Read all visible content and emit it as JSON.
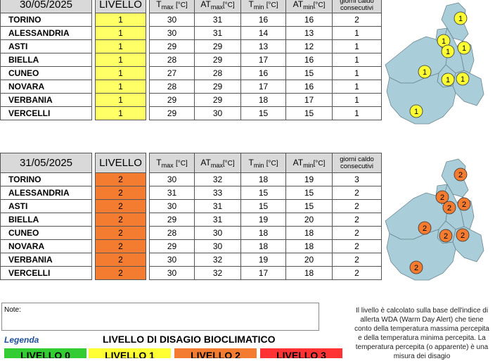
{
  "headers": {
    "livello": "LIVELLO",
    "tmax_main": "T",
    "tmax_sub": "max",
    "tmax_unit": "[°C]",
    "atmax_main": "AT",
    "atmax_sub": "max",
    "atmax_unit": "[°C]",
    "tmin_main": "T",
    "tmin_sub": "min",
    "tmin_unit": "[°C]",
    "atmin_main": "AT",
    "atmin_sub": "min",
    "atmin_unit": "[°C]",
    "giorni": "giorni caldo consecutivi"
  },
  "level_colors": {
    "1": "#ffff66",
    "2": "#f47c30"
  },
  "tables": [
    {
      "date": "30/05/2025",
      "rows": [
        {
          "city": "TORINO",
          "level": "1",
          "tmax": "30",
          "atmax": "31",
          "tmin": "16",
          "atmin": "16",
          "giorni": "2"
        },
        {
          "city": "ALESSANDRIA",
          "level": "1",
          "tmax": "30",
          "atmax": "31",
          "tmin": "14",
          "atmin": "13",
          "giorni": "1"
        },
        {
          "city": "ASTI",
          "level": "1",
          "tmax": "29",
          "atmax": "29",
          "tmin": "13",
          "atmin": "12",
          "giorni": "1"
        },
        {
          "city": "BIELLA",
          "level": "1",
          "tmax": "28",
          "atmax": "29",
          "tmin": "17",
          "atmin": "16",
          "giorni": "1"
        },
        {
          "city": "CUNEO",
          "level": "1",
          "tmax": "27",
          "atmax": "28",
          "tmin": "16",
          "atmin": "15",
          "giorni": "1"
        },
        {
          "city": "NOVARA",
          "level": "1",
          "tmax": "28",
          "atmax": "29",
          "tmin": "17",
          "atmin": "16",
          "giorni": "1"
        },
        {
          "city": "VERBANIA",
          "level": "1",
          "tmax": "29",
          "atmax": "29",
          "tmin": "18",
          "atmin": "17",
          "giorni": "1"
        },
        {
          "city": "VERCELLI",
          "level": "1",
          "tmax": "29",
          "atmax": "30",
          "tmin": "15",
          "atmin": "15",
          "giorni": "1"
        }
      ],
      "map_color": "#ffff33",
      "map_level": "1"
    },
    {
      "date": "31/05/2025",
      "rows": [
        {
          "city": "TORINO",
          "level": "2",
          "tmax": "30",
          "atmax": "32",
          "tmin": "18",
          "atmin": "19",
          "giorni": "3"
        },
        {
          "city": "ALESSANDRIA",
          "level": "2",
          "tmax": "31",
          "atmax": "33",
          "tmin": "15",
          "atmin": "15",
          "giorni": "2"
        },
        {
          "city": "ASTI",
          "level": "2",
          "tmax": "30",
          "atmax": "31",
          "tmin": "15",
          "atmin": "15",
          "giorni": "2"
        },
        {
          "city": "BIELLA",
          "level": "2",
          "tmax": "29",
          "atmax": "31",
          "tmin": "19",
          "atmin": "20",
          "giorni": "2"
        },
        {
          "city": "CUNEO",
          "level": "2",
          "tmax": "28",
          "atmax": "30",
          "tmin": "18",
          "atmin": "18",
          "giorni": "2"
        },
        {
          "city": "NOVARA",
          "level": "2",
          "tmax": "29",
          "atmax": "30",
          "tmin": "18",
          "atmin": "18",
          "giorni": "2"
        },
        {
          "city": "VERBANIA",
          "level": "2",
          "tmax": "30",
          "atmax": "32",
          "tmin": "19",
          "atmin": "20",
          "giorni": "2"
        },
        {
          "city": "VERCELLI",
          "level": "2",
          "tmax": "30",
          "atmax": "32",
          "tmin": "17",
          "atmin": "18",
          "giorni": "2"
        }
      ],
      "map_color": "#f47c30",
      "map_level": "2"
    }
  ],
  "note_label": "Note:",
  "info_text": "Il livello è calcolato sulla base dell'indice di allerta WDA (Warm Day Alert) che tiene conto della temperatura massima percepita e della temperatura minima percepita. La temperatura percepita (o apparente) è una misura dei disagio",
  "legend": {
    "label": "Legenda",
    "title": "LIVELLO DI DISAGIO BIOCLIMATICO",
    "levels": [
      {
        "text": "LIVELLO 0",
        "color": "#33cc33"
      },
      {
        "text": "LIVELLO 1",
        "color": "#ffff33"
      },
      {
        "text": "LIVELLO 2",
        "color": "#f47c30"
      },
      {
        "text": "LIVELLO 3",
        "color": "#ff3333"
      }
    ]
  }
}
